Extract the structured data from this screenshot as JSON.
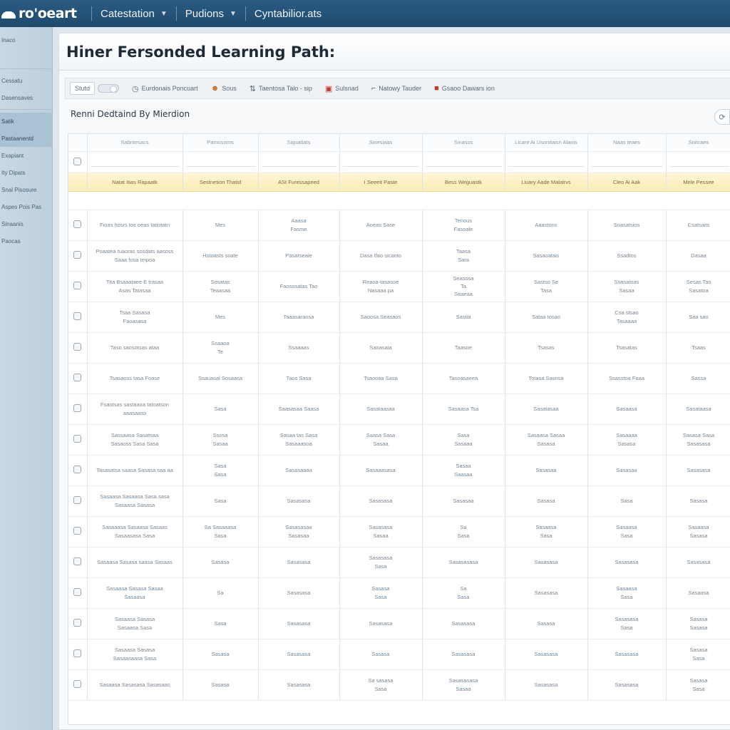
{
  "app": {
    "logo_text": "ro'oeart",
    "nav": [
      {
        "label": "Catestation"
      },
      {
        "label": "Pudions"
      },
      {
        "label": "Cyntabilior.ats"
      }
    ]
  },
  "sidebar": {
    "items": [
      {
        "label": "Inaco"
      },
      {
        "label": ""
      },
      {
        "label": "Cessatu"
      },
      {
        "label": "Dasensaves"
      },
      {
        "label": "Satik"
      },
      {
        "label": "Pastaanentd"
      },
      {
        "label": "Exapiant"
      },
      {
        "label": "Ity Dipats"
      },
      {
        "label": "Snal Pisosure"
      },
      {
        "label": "Aspes Pois Pas"
      },
      {
        "label": "Sinaanis"
      },
      {
        "label": "Paocas"
      }
    ]
  },
  "main": {
    "title": "Hiner Fersonded Learning Path:",
    "section_heading": "Renni Dedtaind By Mierdion",
    "refresh_icon": "refresh-icon"
  },
  "toolbar": {
    "view_label": "Stutd",
    "items": [
      {
        "icon": "clock-icon",
        "label": "Eurdonais Poncuart"
      },
      {
        "icon": "user-icon",
        "label": "Sous"
      },
      {
        "icon": "sort-icon",
        "label": "Taentosa Talo - sip"
      },
      {
        "icon": "calendar-icon",
        "label": "Sulsnad"
      },
      {
        "icon": "filter-icon",
        "label": "Natowy Tauder"
      },
      {
        "icon": "document-icon",
        "label": "Gsaoo Dawars ion"
      }
    ]
  },
  "grid": {
    "columns": [
      "Sabntesacs",
      "Pamosoms",
      "Siquatiats",
      "Sinesiaas",
      "Sinasos",
      "Licant Ai Usonitaisn Alanis",
      "Naas teaes",
      "Snitcaes"
    ],
    "group_row": [
      "Natat Itias Rapaatk",
      "Sestnetion Thatid",
      "ASt Furessapeed",
      "I Seeeit Paste",
      "Bess Weguastk",
      "Liuary Aade Malalrvs",
      "Cleo Ai Aak",
      "Mele Pessee"
    ],
    "rows": [
      [
        "Fioas hosrs tos oeas tatiotatn",
        "Mes",
        "Aaasa\nFasme",
        "Aoeas Sase",
        "Tenous\nFasoale",
        "Aaastons",
        "Soasatsios",
        "Csatsaits"
      ],
      [
        "Poaatea tuaoras sosdats aasoss\nSaaa fosa tmpoa",
        "Hstoasts soate",
        "Pasarseaie",
        "Dasa Ifao sicanto",
        "Taasa\nSara",
        "Sasaoatais",
        "Ssadtos",
        "Dasaa"
      ],
      [
        "Tita Bsaaataee E trasaa\nAsas Tatasaa",
        "Sosatas\nTeaasaa",
        "Faososatas Tao",
        "Reaoa-tasasoe\nNasaaa pa",
        "Seasosa\nTa\nSeaeaa",
        "Sastso Se\nTasa",
        "Ssasatoas\nSasaa",
        "Sesas Tas\nSasatoa"
      ],
      [
        "Tsaa Sasasa\nFaoasasa",
        "Mes",
        "Taaasaraosa",
        "Saoosa Seasaos",
        "Sastia",
        "Sataa tosao",
        "Csa stsao\nTasaaaa",
        "Saa sao"
      ],
      [
        "Taso saosotsas ataa",
        "Ssaaoa\nTe",
        "Ssaaaas",
        "Saoasaia",
        "Taasoe",
        "Tsasas",
        "Tsasatas",
        "Tsaas"
      ],
      [
        "Tsasaoss tasa Foase",
        "Ssauasal Sosaasa",
        "Taos Sasa",
        "Tsaooaa Sasa",
        "Tasoasaeea",
        "Totasa Sasnsa",
        "Ssasstoa Faaa",
        "Sassa"
      ],
      [
        "Fsaotsas sastaaoa tatoatson aaasaaso",
        "Sasa",
        "Saasasaa Saasa",
        "Sasataasaa",
        "Sasaasa Tsa",
        "Sasatasaa",
        "Sasaasa",
        "Sasataasa"
      ],
      [
        "Sassaasa Sasatsaa\nSasaoss Sasa Sasa",
        "Ssosa\nSasaa",
        "Sasaa tas Sasa\nSasaaasoa",
        "Saasa Sasa\nSasaa",
        "Sasa\nSasaaa",
        "Sasaasa Sasaa\nSasasa",
        "Sasaaaa\nSasasa",
        "Sasasa Sasa\nSasasasa"
      ],
      [
        "Tasasatsa saasa Sasasa saa aa",
        "Sasa\nSasa",
        "Sasasaaaa",
        "Sasaaasasa",
        "Sasaa\nSaasaa",
        "Sasasaa",
        "Sasasaa",
        "Sasasasa"
      ],
      [
        "Sasaasa Sasaasa Sasa sasa\nSasaasa Sasasa",
        "Sasa",
        "Sasasasa",
        "Sasasasa",
        "Sasasaa",
        "Sasasa",
        "Sasa",
        "Sasasa"
      ],
      [
        "Sasaaasa Sasaasa Sasaas\nSasaasasa Sasa",
        "Sa Sasaaasa\nSasa",
        "Sasasasaa\nSasasaa",
        "Sasasasa\nSasaa",
        "Sa\nSasa",
        "Sasaasa\nSasa",
        "Sasaasa\nSasa",
        "Sasaasa\nSasasa"
      ],
      [
        "Sasaasa Sasasa saasa Sasaas",
        "Sasasa",
        "Sasasasa",
        "Sasasasa\nSasa",
        "Sasasasasa",
        "Sasasasa",
        "Sasasasa",
        "Sasasasa"
      ],
      [
        "Sasaasa Sasasa Sasaa\nSasaasa",
        "Sa",
        "Sasasasa",
        "Sasasa\nSasa",
        "Sa\nSasa",
        "Sasasasa",
        "Sasaasa\nSasa",
        "Sasaasa"
      ],
      [
        "Sasaasa Sasasa\nSasaasa Sasa",
        "Sasa",
        "Sasasasa",
        "Sasasasa",
        "Sasasasa",
        "Sasasa",
        "Sasasasa\nSasa",
        "Sasasa\nSasasa"
      ],
      [
        "Sasaasa Sasasa\nSasaasaasa Sasa",
        "Sasasa",
        "Sasasasa",
        "Sasasa",
        "Sasasasa",
        "Sasasasa",
        "Sasasasa",
        "Sasasa\nSasa"
      ],
      [
        "Sasaasa Sasasasa Sasasaas",
        "Sasasa",
        "Sasasasa",
        "Sa sasasa\nSasa",
        "Sasasasasa\nSasaa",
        "Sasasasa",
        "Sasasasa",
        "Sasasa\nSasa"
      ]
    ]
  },
  "colors": {
    "topbar": "#1f4a6e",
    "sidebar": "#c4d5e1",
    "group_row": "#fbecb7",
    "accent_red": "#c0392b"
  }
}
